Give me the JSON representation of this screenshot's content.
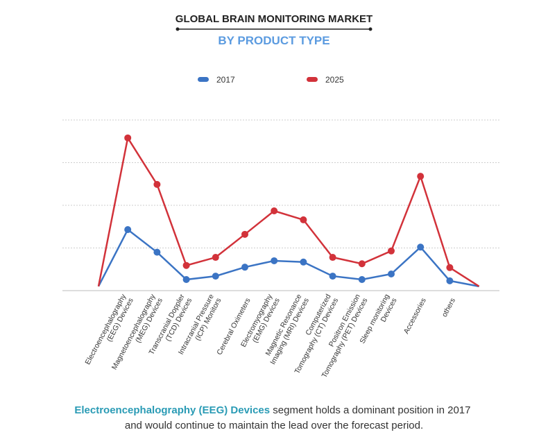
{
  "chart_data": {
    "type": "line",
    "title": "GLOBAL BRAIN MONITORING MARKET",
    "subtitle": "BY PRODUCT TYPE",
    "categories": [
      null,
      "Electroencephalography\n(EEG) Devices",
      "Magnetoencephalography\n(MEG) Devices",
      "Transcranial Doppler\n(TCD) Devices",
      "Intracranial Pressure\n(ICP) Monitors",
      "Cerebral Oximeters",
      "Electromyography\n(EMG) Devices",
      "Magnetic Resonance\nImaging (MRI) Devices",
      "Computerized\nTomography (CT) Devices",
      "Positron Emission\nTomography (PET) Devices",
      "Sleep monitoring\nDevices",
      "Accessories",
      "others",
      null
    ],
    "series": [
      {
        "name": "2017",
        "color": "#3b74c4",
        "values": [
          0.1,
          1.43,
          0.9,
          0.26,
          0.34,
          0.55,
          0.7,
          0.67,
          0.34,
          0.26,
          0.39,
          1.02,
          0.23,
          0.1
        ]
      },
      {
        "name": "2025",
        "color": "#d2323a",
        "values": [
          0.1,
          3.58,
          2.49,
          0.59,
          0.78,
          1.32,
          1.87,
          1.66,
          0.78,
          0.63,
          0.93,
          2.68,
          0.54,
          0.1
        ]
      }
    ],
    "ylim": [
      0,
      4
    ],
    "yticks": [
      1,
      2,
      3,
      4
    ],
    "grid": true,
    "footnote": {
      "highlight": "Electroencephalography (EEG) Devices",
      "text": " segment holds a dominant position in 2017\nand would continue to maintain the lead over the forecast period."
    }
  }
}
